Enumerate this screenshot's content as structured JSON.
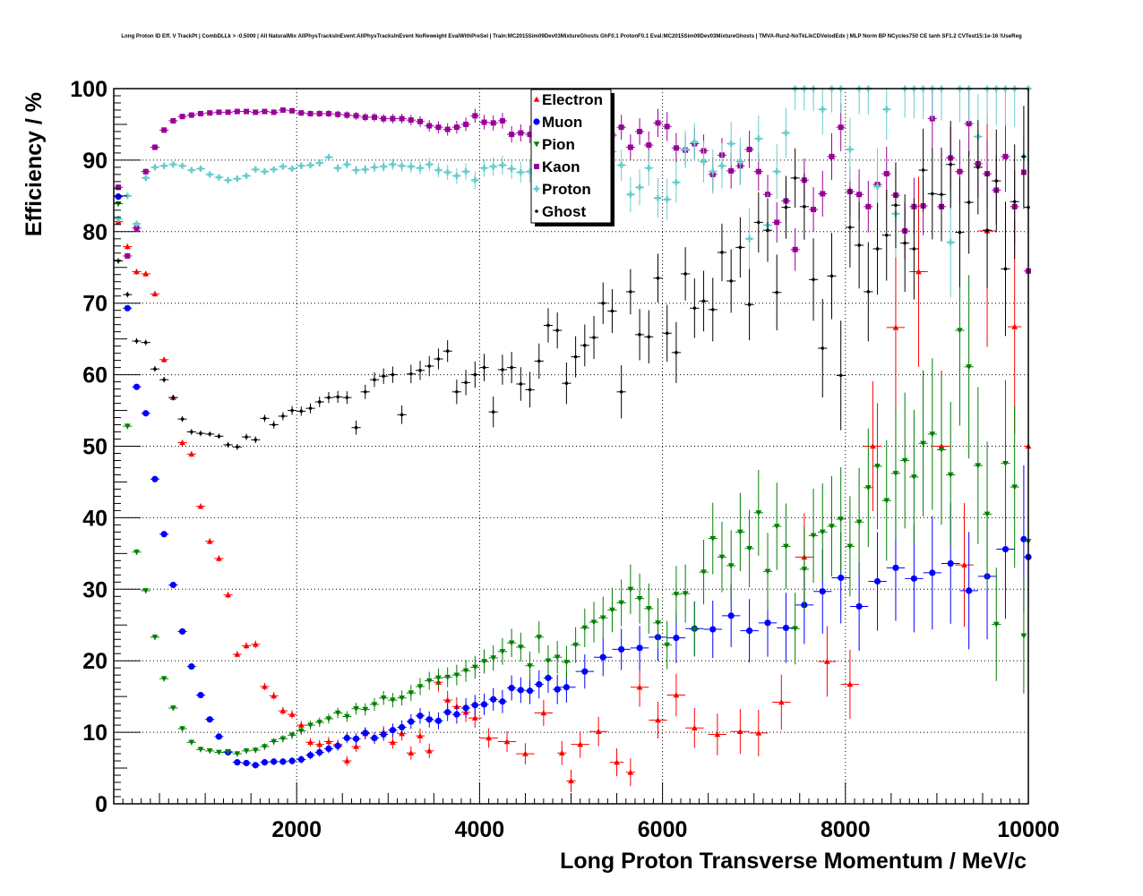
{
  "chart_data": {
    "type": "scatter",
    "title": "Long Proton ID Eff. V TrackPt | CombDLLk > -0.5000 | All NaturalMix AllPhysTracksInEvent:AllPhysTracksInEvent NoReweight EvalWithPreSel | Train:MC2015Sim09Dev03MixtureGhosts GhF0.1 ProtonF0.1 Eval:MC2015Sim09Dev03MixtureGhosts | TMVA-Run2-NoTkLikCDVelodEdx | MLP Norm BP NCycles750 CE tanh SF1.2 CVTest15:1e-16 !UseReg",
    "xlabel": "Long Proton Transverse Momentum / MeV/c",
    "ylabel": "Efficiency / %",
    "xlim": [
      0,
      10000
    ],
    "ylim": [
      0,
      100
    ],
    "xticks": [
      2000,
      4000,
      6000,
      8000,
      10000
    ],
    "yticks": [
      0,
      10,
      20,
      30,
      40,
      50,
      60,
      70,
      80,
      90,
      100
    ],
    "grid": true,
    "legend_position": "top-center",
    "series": [
      {
        "name": "Electron",
        "color": "#ff0000",
        "marker": "triangle-up",
        "x": [
          50,
          150,
          250,
          350,
          450,
          550,
          650,
          750,
          850,
          950,
          1050,
          1150,
          1250,
          1350,
          1450,
          1550,
          1650,
          1750,
          1850,
          1950,
          2050,
          2150,
          2250,
          2350,
          2450,
          2550,
          2650,
          2750,
          2850,
          2950,
          3050,
          3150,
          3250,
          3350,
          3450,
          3550,
          3650,
          3750,
          3850,
          3950,
          4100,
          4300,
          4500,
          4700,
          4900,
          5000,
          5100,
          5300,
          5500,
          5650,
          5750,
          5950,
          6150,
          6350,
          6600,
          6850,
          7050,
          7300,
          7550,
          7800,
          8050,
          8300,
          8550,
          8800,
          9050,
          9300,
          9550,
          9850,
          10000
        ],
        "y": [
          81.4,
          77.9,
          74.4,
          74.1,
          71.3,
          62.1,
          56.8,
          50.5,
          48.9,
          41.6,
          36.7,
          34.3,
          29.2,
          20.9,
          22.1,
          22.3,
          16.4,
          15.1,
          13.0,
          12.5,
          11.0,
          8.6,
          8.3,
          8.7,
          8.3,
          6.0,
          8.0,
          9.8,
          9.2,
          10.0,
          8.6,
          9.8,
          7.1,
          9.5,
          7.4,
          17.0,
          14.5,
          13.6,
          12.8,
          12.0,
          9.2,
          8.7,
          7.0,
          12.7,
          7.1,
          3.2,
          8.3,
          10.1,
          5.8,
          4.4,
          16.3,
          11.7,
          15.2,
          10.6,
          9.7,
          10.1,
          9.9,
          14.2,
          34.5,
          19.9,
          16.7,
          50.0,
          66.6,
          74.4,
          50.0,
          33.4,
          80.1,
          66.7,
          50.0
        ]
      },
      {
        "name": "Muon",
        "color": "#0000ff",
        "marker": "circle",
        "x": [
          50,
          150,
          250,
          350,
          450,
          550,
          650,
          750,
          850,
          950,
          1050,
          1150,
          1250,
          1350,
          1450,
          1550,
          1650,
          1750,
          1850,
          1950,
          2050,
          2150,
          2250,
          2350,
          2450,
          2550,
          2650,
          2750,
          2850,
          2950,
          3050,
          3150,
          3250,
          3350,
          3450,
          3550,
          3650,
          3750,
          3850,
          3950,
          4050,
          4150,
          4250,
          4350,
          4450,
          4550,
          4650,
          4750,
          4850,
          4950,
          5150,
          5350,
          5550,
          5750,
          5950,
          6150,
          6350,
          6550,
          6750,
          6950,
          7150,
          7350,
          7550,
          7750,
          7950,
          8150,
          8350,
          8550,
          8750,
          8950,
          9150,
          9350,
          9550,
          9750,
          9950,
          10000
        ],
        "y": [
          84.9,
          69.3,
          58.3,
          54.6,
          45.4,
          37.7,
          30.6,
          24.1,
          19.2,
          15.2,
          11.8,
          9.4,
          7.2,
          5.8,
          5.7,
          5.4,
          5.8,
          5.9,
          5.9,
          6.0,
          6.2,
          6.8,
          7.2,
          7.7,
          8.1,
          9.2,
          9.1,
          9.9,
          9.2,
          9.7,
          10.3,
          10.7,
          11.5,
          12.3,
          11.8,
          11.6,
          12.8,
          12.5,
          13.4,
          13.8,
          13.9,
          14.6,
          14.3,
          16.2,
          15.9,
          15.8,
          16.7,
          17.6,
          16.0,
          16.3,
          18.5,
          20.5,
          21.6,
          21.8,
          23.3,
          23.2,
          24.5,
          24.4,
          26.3,
          24.2,
          25.3,
          24.6,
          27.8,
          29.7,
          31.6,
          27.6,
          31.1,
          33.0,
          31.5,
          32.3,
          33.6,
          29.8,
          31.8,
          35.6,
          37.0,
          34.5
        ]
      },
      {
        "name": "Pion",
        "color": "#008000",
        "marker": "triangle-down",
        "x": [
          50,
          150,
          250,
          350,
          450,
          550,
          650,
          750,
          850,
          950,
          1050,
          1150,
          1250,
          1350,
          1450,
          1550,
          1650,
          1750,
          1850,
          1950,
          2050,
          2150,
          2250,
          2350,
          2450,
          2550,
          2650,
          2750,
          2850,
          2950,
          3050,
          3150,
          3250,
          3350,
          3450,
          3550,
          3650,
          3750,
          3850,
          3950,
          4050,
          4150,
          4250,
          4350,
          4450,
          4550,
          4650,
          4750,
          4850,
          4950,
          5050,
          5150,
          5250,
          5350,
          5450,
          5550,
          5650,
          5750,
          5850,
          5950,
          6050,
          6150,
          6250,
          6350,
          6450,
          6550,
          6650,
          6750,
          6850,
          6950,
          7050,
          7150,
          7250,
          7350,
          7450,
          7550,
          7650,
          7750,
          7850,
          7950,
          8050,
          8150,
          8250,
          8350,
          8450,
          8550,
          8650,
          8750,
          8850,
          8950,
          9050,
          9150,
          9250,
          9350,
          9450,
          9550,
          9650,
          9750,
          9850,
          9950,
          10000
        ],
        "y": [
          83.9,
          52.8,
          35.2,
          29.8,
          23.3,
          17.5,
          13.4,
          10.5,
          8.6,
          7.6,
          7.4,
          7.2,
          7.3,
          7.0,
          7.4,
          7.5,
          8.0,
          8.7,
          9.1,
          9.6,
          10.2,
          11.0,
          11.4,
          11.9,
          12.7,
          12.2,
          13.3,
          13.2,
          13.9,
          14.8,
          14.5,
          14.8,
          15.5,
          16.4,
          17.2,
          17.6,
          17.7,
          18.0,
          18.6,
          19.1,
          19.9,
          20.4,
          21.3,
          22.5,
          21.9,
          19.3,
          23.3,
          20.0,
          20.5,
          19.8,
          22.2,
          24.6,
          25.4,
          26.0,
          27.1,
          28.1,
          30.0,
          28.7,
          27.3,
          25.3,
          22.2,
          29.3,
          29.4,
          24.4,
          32.4,
          37.1,
          34.5,
          33.3,
          38.0,
          35.7,
          40.7,
          32.5,
          38.8,
          36.0,
          24.5,
          32.8,
          37.5,
          38.0,
          38.8,
          39.8,
          36.0,
          39.4,
          44.2,
          47.2,
          42.4,
          46.2,
          48.0,
          45.7,
          50.4,
          51.7,
          49.5,
          46.0,
          66.2,
          61.1,
          47.3,
          40.5,
          25.1,
          47.6,
          44.3,
          23.5,
          36.7
        ]
      },
      {
        "name": "Kaon",
        "color": "#990099",
        "marker": "square",
        "x": [
          50,
          150,
          250,
          350,
          450,
          550,
          650,
          750,
          850,
          950,
          1050,
          1150,
          1250,
          1350,
          1450,
          1550,
          1650,
          1750,
          1850,
          1950,
          2050,
          2150,
          2250,
          2350,
          2450,
          2550,
          2650,
          2750,
          2850,
          2950,
          3050,
          3150,
          3250,
          3350,
          3450,
          3550,
          3650,
          3750,
          3850,
          3950,
          4050,
          4150,
          4250,
          4350,
          4450,
          4550,
          4650,
          4750,
          4850,
          4950,
          5050,
          5150,
          5250,
          5350,
          5450,
          5550,
          5650,
          5750,
          5850,
          5950,
          6050,
          6150,
          6250,
          6350,
          6450,
          6550,
          6650,
          6750,
          6850,
          6950,
          7050,
          7150,
          7250,
          7350,
          7450,
          7550,
          7650,
          7750,
          7850,
          7950,
          8050,
          8150,
          8250,
          8350,
          8450,
          8550,
          8650,
          8750,
          8850,
          8950,
          9050,
          9150,
          9250,
          9350,
          9450,
          9550,
          9650,
          9750,
          9850,
          9950,
          10000
        ],
        "y": [
          86.2,
          76.6,
          80.5,
          88.4,
          91.8,
          94.2,
          95.5,
          96.1,
          96.3,
          96.5,
          96.6,
          96.7,
          96.7,
          96.8,
          96.8,
          96.7,
          96.8,
          96.7,
          97.0,
          96.9,
          96.6,
          96.5,
          96.5,
          96.5,
          96.4,
          96.3,
          96.2,
          96.0,
          96.0,
          95.8,
          95.8,
          95.8,
          95.6,
          95.4,
          94.8,
          94.6,
          94.3,
          94.6,
          95.0,
          96.2,
          95.3,
          95.2,
          95.5,
          93.6,
          93.8,
          93.6,
          93.1,
          93.4,
          92.8,
          94.0,
          93.5,
          93.0,
          92.5,
          92.5,
          93.5,
          94.6,
          91.8,
          94.0,
          92.1,
          95.2,
          94.7,
          91.7,
          91.4,
          92.3,
          91.3,
          88.0,
          90.7,
          88.5,
          89.2,
          91.5,
          88.4,
          85.2,
          81.3,
          84.3,
          77.5,
          87.2,
          83.1,
          85.3,
          90.5,
          94.6,
          85.6,
          85.2,
          83.5,
          86.6,
          88.1,
          85.1,
          80.1,
          83.5,
          83.6,
          95.8,
          83.5,
          90.3,
          88.4,
          95.1,
          89.5,
          88.1,
          85.8,
          90.5,
          83.5,
          88.3,
          74.5
        ]
      },
      {
        "name": "Proton",
        "color": "#66cccc",
        "marker": "cross",
        "x": [
          50,
          150,
          250,
          350,
          450,
          550,
          650,
          750,
          850,
          950,
          1050,
          1150,
          1250,
          1350,
          1450,
          1550,
          1650,
          1750,
          1850,
          1950,
          2050,
          2150,
          2250,
          2350,
          2450,
          2550,
          2650,
          2750,
          2850,
          2950,
          3050,
          3150,
          3250,
          3350,
          3450,
          3550,
          3650,
          3750,
          3850,
          3950,
          4050,
          4150,
          4250,
          4350,
          4450,
          4550,
          4650,
          4750,
          4850,
          4950,
          5050,
          5150,
          5250,
          5350,
          5450,
          5550,
          5650,
          5750,
          5850,
          5950,
          6050,
          6150,
          6250,
          6350,
          6450,
          6550,
          6650,
          6750,
          6850,
          6950,
          7050,
          7150,
          7250,
          7350,
          7450,
          7550,
          7650,
          7750,
          7850,
          7950,
          8050,
          8150,
          8250,
          8350,
          8450,
          8550,
          8650,
          8750,
          8850,
          8950,
          9050,
          9150,
          9250,
          9350,
          9450,
          9550,
          9650,
          9750,
          9850,
          9950,
          10000
        ],
        "y": [
          81.8,
          85.0,
          81.1,
          87.5,
          89.0,
          89.2,
          89.4,
          89.2,
          88.6,
          88.8,
          88.0,
          87.6,
          87.2,
          87.4,
          87.8,
          88.7,
          88.4,
          88.7,
          89.1,
          88.8,
          89.2,
          89.3,
          89.6,
          90.4,
          88.9,
          89.4,
          88.6,
          88.7,
          89.0,
          89.1,
          89.4,
          89.2,
          89.1,
          88.9,
          89.4,
          88.6,
          88.3,
          87.8,
          88.4,
          87.2,
          88.9,
          89.1,
          89.3,
          88.8,
          88.3,
          88.4,
          88.9,
          88.1,
          87.6,
          86.2,
          86.7,
          88.5,
          89.2,
          88.7,
          91.2,
          89.3,
          85.2,
          86.2,
          88.9,
          84.7,
          84.5,
          86.9,
          91.5,
          92.5,
          89.8,
          88.4,
          89.2,
          92.3,
          89.8,
          79.0,
          93.0,
          80.9,
          88.4,
          93.8,
          100.0,
          100.0,
          100.0,
          97.1,
          100.0,
          100.0,
          91.5,
          100.0,
          100.0,
          86.3,
          97.1,
          82.5,
          100.0,
          100.0,
          100.0,
          100.0,
          100.0,
          78.5,
          100.0,
          100.0,
          93.3,
          100.0,
          100.0,
          100.0,
          100.0,
          90.5,
          100.0
        ]
      },
      {
        "name": "Ghost",
        "color": "#000000",
        "marker": "dot",
        "x": [
          50,
          150,
          250,
          350,
          450,
          550,
          650,
          750,
          850,
          950,
          1050,
          1150,
          1250,
          1350,
          1450,
          1550,
          1650,
          1750,
          1850,
          1950,
          2050,
          2150,
          2250,
          2350,
          2450,
          2550,
          2650,
          2750,
          2850,
          2950,
          3050,
          3150,
          3250,
          3350,
          3450,
          3550,
          3650,
          3750,
          3850,
          3950,
          4050,
          4150,
          4250,
          4350,
          4450,
          4550,
          4650,
          4750,
          4850,
          4950,
          5050,
          5150,
          5250,
          5350,
          5450,
          5550,
          5650,
          5750,
          5850,
          5950,
          6050,
          6150,
          6250,
          6350,
          6450,
          6550,
          6650,
          6750,
          6850,
          6950,
          7050,
          7150,
          7250,
          7350,
          7450,
          7550,
          7650,
          7750,
          7850,
          7950,
          8050,
          8150,
          8250,
          8350,
          8450,
          8550,
          8650,
          8750,
          8850,
          8950,
          9050,
          9150,
          9250,
          9350,
          9450,
          9550,
          9650,
          9750,
          9850,
          9950,
          10000
        ],
        "y": [
          75.9,
          71.2,
          64.7,
          64.5,
          60.8,
          59.3,
          56.8,
          53.8,
          52.0,
          51.8,
          51.7,
          51.4,
          50.2,
          49.9,
          51.3,
          50.9,
          53.9,
          53.0,
          54.2,
          55.0,
          54.9,
          55.3,
          56.2,
          56.8,
          56.9,
          56.8,
          52.6,
          57.6,
          59.3,
          59.8,
          60.0,
          54.4,
          60.1,
          60.6,
          61.2,
          62.2,
          63.3,
          57.6,
          58.9,
          60.0,
          61.0,
          54.8,
          60.7,
          61.0,
          58.7,
          57.9,
          61.9,
          66.9,
          66.2,
          58.8,
          62.5,
          64.1,
          65.2,
          70.0,
          68.9,
          57.6,
          71.6,
          65.6,
          65.3,
          73.5,
          65.8,
          63.1,
          74.1,
          69.3,
          70.3,
          69.1,
          77.1,
          73.1,
          77.8,
          69.8,
          81.3,
          80.2,
          71.5,
          83.4,
          87.5,
          83.5,
          73.3,
          63.7,
          73.8,
          59.9,
          80.6,
          78.1,
          71.6,
          77.6,
          79.5,
          83.7,
          78.4,
          77.6,
          88.6,
          85.3,
          85.2,
          89.4,
          79.9,
          84.1,
          89.0,
          80.2,
          87.1,
          74.8,
          84.2,
          90.5,
          83.4
        ]
      }
    ]
  }
}
